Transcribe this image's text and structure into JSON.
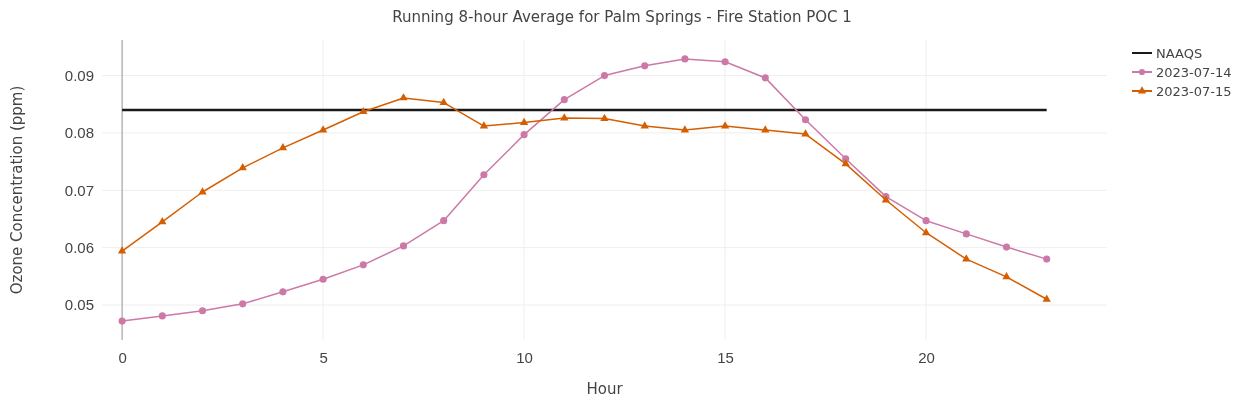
{
  "chart_data": {
    "type": "line",
    "title": "Running 8-hour Average for Palm Springs - Fire Station POC 1",
    "xlabel": "Hour",
    "ylabel": "Ozone Concentration (ppm)",
    "xlim": [
      -0.5,
      24.5
    ],
    "xticks": [
      0,
      5,
      10,
      15,
      20
    ],
    "ylim": [
      0.0439,
      0.0962
    ],
    "yticks": [
      0.05,
      0.06,
      0.07,
      0.08,
      0.09
    ],
    "grid": true,
    "legend": "top right",
    "series": [
      {
        "name": "NAAQS",
        "color": "#1a1a1a",
        "marker": "none",
        "x": [
          0,
          23
        ],
        "values": [
          0.084,
          0.084
        ]
      },
      {
        "name": "2023-07-14",
        "color": "#cc79a7",
        "marker": "circle",
        "x": [
          0,
          1,
          2,
          3,
          4,
          5,
          6,
          7,
          8,
          9,
          10,
          11,
          12,
          13,
          14,
          15,
          16,
          17,
          18,
          19,
          20,
          21,
          22,
          23
        ],
        "values": [
          0.0472,
          0.0481,
          0.049,
          0.0502,
          0.0523,
          0.0545,
          0.057,
          0.0603,
          0.0647,
          0.0727,
          0.0797,
          0.0858,
          0.09,
          0.0917,
          0.0929,
          0.0924,
          0.0896,
          0.0823,
          0.0755,
          0.0689,
          0.0647,
          0.0624,
          0.0601,
          0.058
        ]
      },
      {
        "name": "2023-07-15",
        "color": "#d55e00",
        "marker": "triangle",
        "x": [
          0,
          1,
          2,
          3,
          4,
          5,
          6,
          7,
          8,
          9,
          10,
          11,
          12,
          13,
          14,
          15,
          16,
          17,
          18,
          19,
          20,
          21,
          22,
          23
        ],
        "values": [
          0.0594,
          0.0645,
          0.0697,
          0.0739,
          0.0774,
          0.0805,
          0.0837,
          0.0861,
          0.0853,
          0.0812,
          0.0818,
          0.0826,
          0.0825,
          0.0812,
          0.0805,
          0.0812,
          0.0805,
          0.0798,
          0.0746,
          0.0683,
          0.0626,
          0.058,
          0.0549,
          0.051
        ]
      }
    ]
  }
}
